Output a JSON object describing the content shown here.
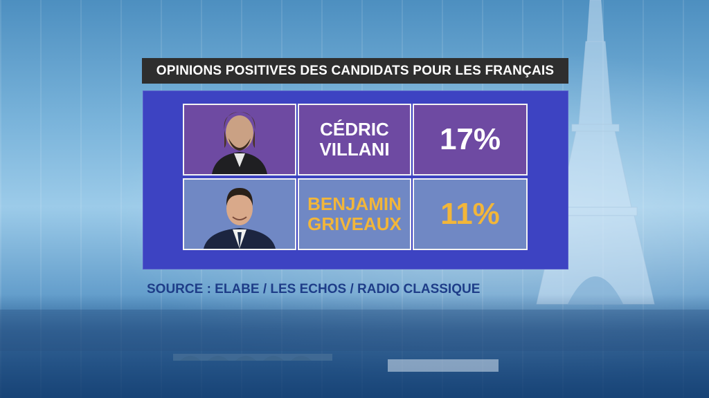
{
  "title": "OPINIONS POSITIVES DES CANDIDATS POUR LES FRANÇAIS",
  "candidates": [
    {
      "name_line1": "CÉDRIC",
      "name_line2": "VILLANI",
      "percent": "17%",
      "name_color": "#ffffff",
      "percent_color": "#ffffff"
    },
    {
      "name_line1": "BENJAMIN",
      "name_line2": "GRIVEAUX",
      "percent": "11%",
      "name_color": "#f2b63a",
      "percent_color": "#f2b63a"
    }
  ],
  "source": "SOURCE : ELABE / LES ECHOS / RADIO CLASSIQUE",
  "colors": {
    "title_bg": "#2e2e2e",
    "panel_bg": "#3d43c2",
    "row1_bg": "#6e4aa2",
    "row2_bg": "#7088c4",
    "source_text": "#1e3d88"
  }
}
